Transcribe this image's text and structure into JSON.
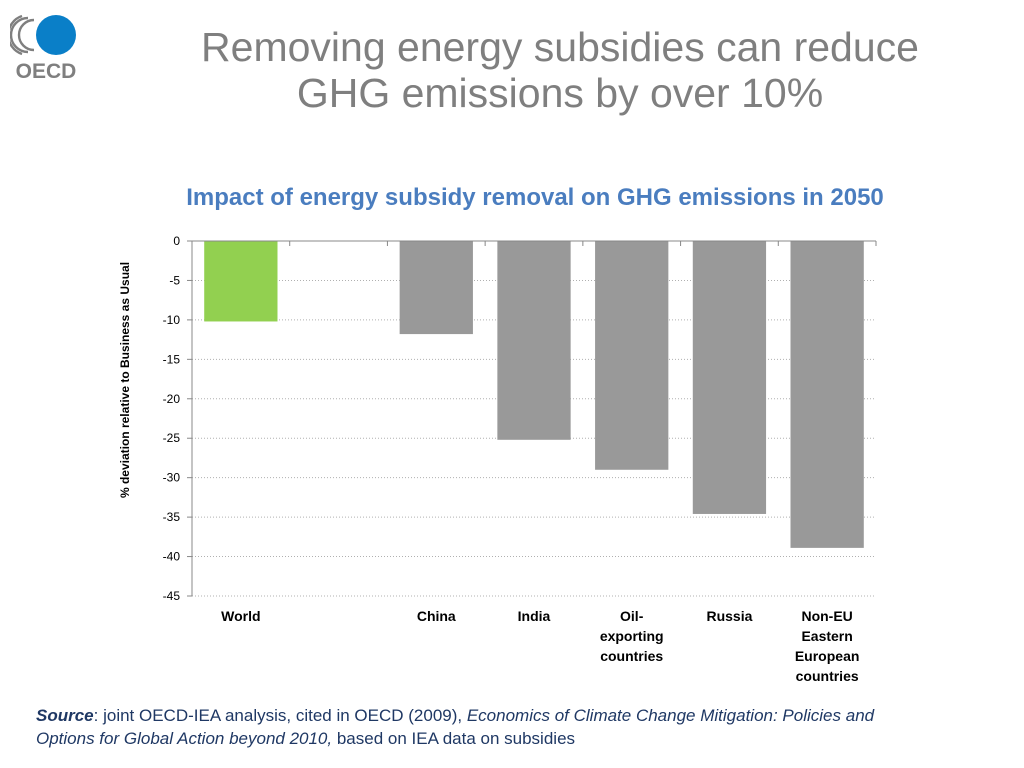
{
  "slide": {
    "title_line1": "Removing energy subsidies can reduce",
    "title_line2": "GHG emissions by over 10%"
  },
  "logo": {
    "text": "OECD",
    "colors": {
      "blue": "#0a7fc8",
      "gray": "#7f7f7f"
    }
  },
  "chart_data": {
    "type": "bar",
    "title": "Impact of energy subsidy removal on GHG emissions in 2050",
    "ylabel": "% deviation relative to Business as Usual",
    "xlabel": "",
    "ylim": [
      -45,
      0
    ],
    "yticks": [
      0,
      -5,
      -10,
      -15,
      -20,
      -25,
      -30,
      -35,
      -40,
      -45
    ],
    "grid": true,
    "categories": [
      [
        "World"
      ],
      [
        ""
      ],
      [
        "China"
      ],
      [
        "India"
      ],
      [
        "Oil-",
        "exporting",
        "countries"
      ],
      [
        "Russia"
      ],
      [
        "Non-EU",
        "Eastern",
        "European",
        "countries"
      ]
    ],
    "values": [
      -10.2,
      null,
      -11.8,
      -25.2,
      -29.0,
      -34.6,
      -38.9
    ],
    "colors": [
      "#92d050",
      "#999999",
      "#999999",
      "#999999",
      "#999999",
      "#999999",
      "#999999"
    ]
  },
  "source": {
    "label": "Source",
    "text1": ": joint OECD-IEA analysis, cited in OECD (2009), ",
    "italic": "Economics of Climate Change Mitigation: Policies and Options for Global Action beyond 2010,",
    "text2": " based on IEA data on subsidies"
  }
}
